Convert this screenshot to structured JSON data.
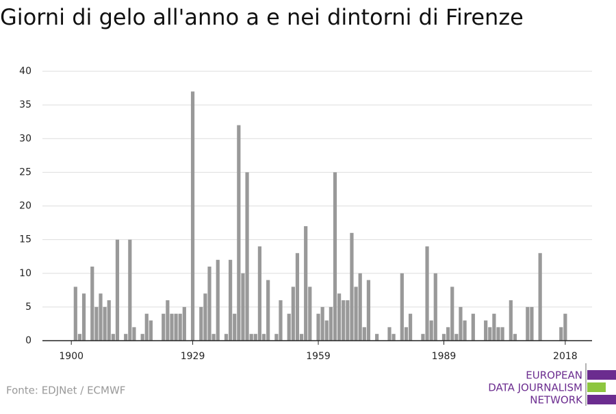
{
  "chart_data": {
    "type": "bar",
    "title": "Giorni di gelo all'anno a e nei dintorni di Firenze",
    "source": "Fonte: EDJNet / ECMWF",
    "logo": [
      "EUROPEAN",
      "DATA JOURNALISM",
      "NETWORK"
    ],
    "color": "#999999",
    "x": [
      1900,
      1901,
      1902,
      1903,
      1904,
      1905,
      1906,
      1907,
      1908,
      1909,
      1910,
      1911,
      1912,
      1913,
      1914,
      1915,
      1916,
      1917,
      1918,
      1919,
      1920,
      1921,
      1922,
      1923,
      1924,
      1925,
      1926,
      1927,
      1928,
      1929,
      1930,
      1931,
      1932,
      1933,
      1934,
      1935,
      1936,
      1937,
      1938,
      1939,
      1940,
      1941,
      1942,
      1943,
      1944,
      1945,
      1946,
      1947,
      1948,
      1949,
      1950,
      1951,
      1952,
      1953,
      1954,
      1955,
      1956,
      1957,
      1958,
      1959,
      1960,
      1961,
      1962,
      1963,
      1964,
      1965,
      1966,
      1967,
      1968,
      1969,
      1970,
      1971,
      1972,
      1973,
      1974,
      1975,
      1976,
      1977,
      1978,
      1979,
      1980,
      1981,
      1982,
      1983,
      1984,
      1985,
      1986,
      1987,
      1988,
      1989,
      1990,
      1991,
      1992,
      1993,
      1994,
      1995,
      1996,
      1997,
      1998,
      1999,
      2000,
      2001,
      2002,
      2003,
      2004,
      2005,
      2006,
      2007,
      2008,
      2009,
      2010,
      2011,
      2012,
      2013,
      2014,
      2015,
      2016,
      2017,
      2018
    ],
    "values": [
      0,
      8,
      1,
      7,
      0,
      11,
      5,
      7,
      5,
      6,
      1,
      15,
      0,
      1,
      15,
      2,
      0,
      1,
      4,
      3,
      0,
      0,
      4,
      6,
      4,
      4,
      4,
      5,
      0,
      37,
      0,
      5,
      7,
      11,
      1,
      12,
      0,
      1,
      12,
      4,
      32,
      10,
      25,
      1,
      1,
      14,
      1,
      9,
      0,
      1,
      6,
      0,
      4,
      8,
      13,
      1,
      17,
      8,
      0,
      4,
      5,
      3,
      5,
      25,
      7,
      6,
      6,
      16,
      8,
      10,
      2,
      9,
      0,
      1,
      0,
      0,
      2,
      1,
      0,
      10,
      2,
      4,
      0,
      0,
      1,
      14,
      3,
      10,
      0,
      1,
      2,
      8,
      1,
      5,
      3,
      0,
      4,
      0,
      0,
      3,
      2,
      4,
      2,
      2,
      0,
      6,
      1,
      0,
      0,
      5,
      5,
      0,
      13,
      0,
      0,
      0,
      0,
      2,
      4
    ],
    "xlim": [
      1893.1,
      2024.4
    ],
    "xticks": [
      1900,
      1929,
      1959,
      1989,
      2018
    ],
    "ylim": [
      0,
      40
    ],
    "yticks": [
      0,
      5,
      10,
      15,
      20,
      25,
      30,
      35,
      40
    ],
    "grid": true
  }
}
